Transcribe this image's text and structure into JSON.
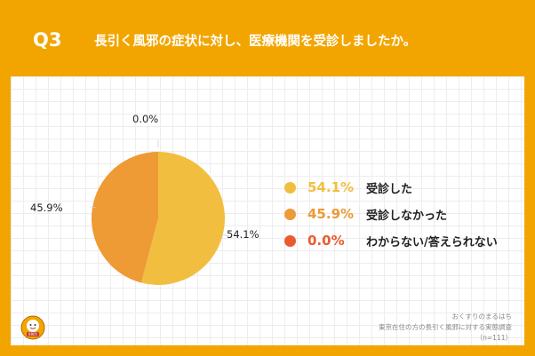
{
  "header": {
    "question_number": "Q3",
    "question_text": "長引く風邪の症状に対し、医療機関を受診しましたか。"
  },
  "colors": {
    "background": "#F2A500",
    "panel": "#FFFFFF"
  },
  "chart_data": {
    "type": "pie",
    "slices": [
      {
        "label": "受診した",
        "value": 54.1,
        "display": "54.1%",
        "color": "#F2BE40"
      },
      {
        "label": "受診しなかった",
        "value": 45.9,
        "display": "45.9%",
        "color": "#EE9A35"
      },
      {
        "label": "わからない/答えられない",
        "value": 0.0,
        "display": "0.0%",
        "color": "#EA5B30"
      }
    ],
    "legend_position": "right"
  },
  "source": {
    "brand": "おくすりのまるはち",
    "survey": "東京在住の方の長引く風邪に対する実態調査",
    "sample": "（n=111）"
  },
  "logo": {
    "icon": "pharmacy-mascot-logo",
    "text": "0805"
  }
}
